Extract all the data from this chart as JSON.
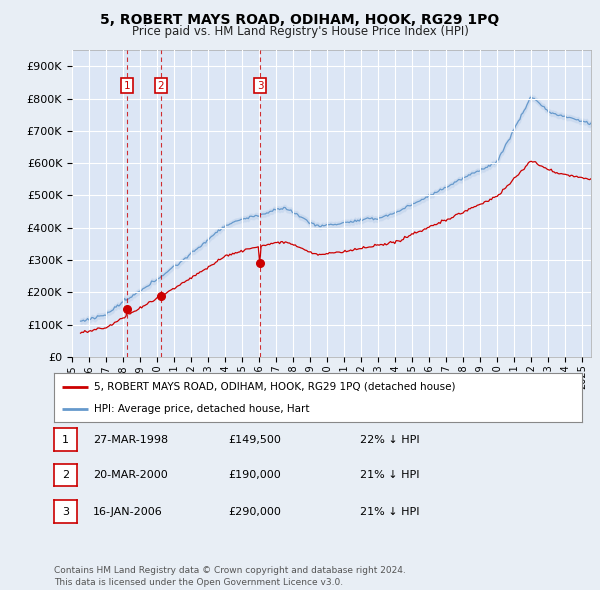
{
  "title": "5, ROBERT MAYS ROAD, ODIHAM, HOOK, RG29 1PQ",
  "subtitle": "Price paid vs. HM Land Registry's House Price Index (HPI)",
  "background_color": "#e8eef5",
  "plot_bg_color": "#dce6f5",
  "grid_color": "#ffffff",
  "ylim": [
    0,
    950000
  ],
  "yticks": [
    0,
    100000,
    200000,
    300000,
    400000,
    500000,
    600000,
    700000,
    800000,
    900000
  ],
  "ytick_labels": [
    "£0",
    "£100K",
    "£200K",
    "£300K",
    "£400K",
    "£500K",
    "£600K",
    "£700K",
    "£800K",
    "£900K"
  ],
  "xlim_start": 1995.5,
  "xlim_end": 2025.5,
  "sale_dates": [
    1998.23,
    2000.22,
    2006.05
  ],
  "sale_prices": [
    149500,
    190000,
    290000
  ],
  "sale_color": "#cc0000",
  "hpi_color": "#6699cc",
  "hpi_fill_color": "#c8d8ee",
  "legend_entries": [
    "5, ROBERT MAYS ROAD, ODIHAM, HOOK, RG29 1PQ (detached house)",
    "HPI: Average price, detached house, Hart"
  ],
  "table_data": [
    [
      "1",
      "27-MAR-1998",
      "£149,500",
      "22% ↓ HPI"
    ],
    [
      "2",
      "20-MAR-2000",
      "£190,000",
      "21% ↓ HPI"
    ],
    [
      "3",
      "16-JAN-2006",
      "£290,000",
      "21% ↓ HPI"
    ]
  ],
  "footnote": "Contains HM Land Registry data © Crown copyright and database right 2024.\nThis data is licensed under the Open Government Licence v3.0."
}
